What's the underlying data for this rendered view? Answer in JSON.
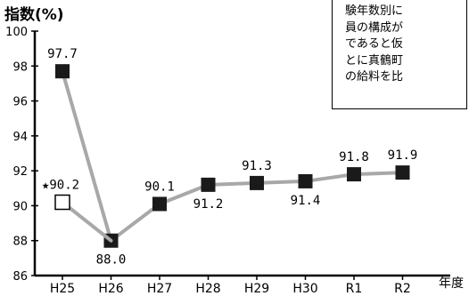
{
  "note_lines": [
    "験年数別に",
    "員の構成が",
    "であると仮",
    "とに真鶴町",
    "の給料を比"
  ],
  "chart_data": {
    "type": "line",
    "ylabel": "指数(%)",
    "xlabel": "年度",
    "categories": [
      "H25",
      "H26",
      "H27",
      "H28",
      "H29",
      "H30",
      "R1",
      "R2"
    ],
    "series": [
      {
        "values": [
          97.7,
          88.0,
          90.1,
          91.2,
          91.3,
          91.4,
          91.8,
          91.9
        ],
        "labels": [
          "97.7",
          "88.0",
          "90.1",
          "91.2",
          "91.3",
          "91.4",
          "91.8",
          "91.9"
        ],
        "marker": "filled-square",
        "color": "#1a1a1a",
        "line_color": "#a8a8a8"
      }
    ],
    "extra_points": [
      {
        "category": "H25",
        "value": 90.2,
        "label": "★90.2",
        "marker": "open-square"
      }
    ],
    "yticks": [
      "86",
      "88",
      "90",
      "92",
      "94",
      "96",
      "98",
      "100"
    ],
    "ylim": [
      86,
      100
    ]
  }
}
